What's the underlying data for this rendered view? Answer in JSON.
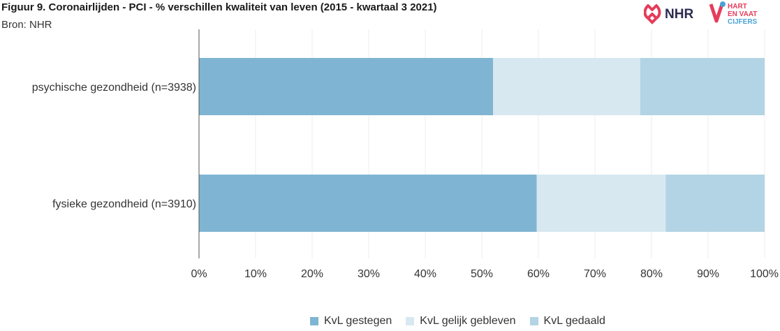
{
  "header": {
    "title": "Figuur 9. Coronairlijden - PCI - % verschillen kwaliteit van leven (2015 - kwartaal 3 2021)",
    "source": "Bron: NHR"
  },
  "logos": {
    "nhr_text": "NHR",
    "hvc_line1": "HART",
    "hvc_line2": "EN VAAT",
    "hvc_line3": "CIJFERS",
    "nhr_color": "#e53c5a",
    "hvc_color": "#e53c5a",
    "hvc_accent": "#4aa3d6"
  },
  "chart_data": {
    "type": "bar",
    "orientation": "horizontal",
    "stacked": true,
    "percent": true,
    "categories": [
      "psychische gezondheid (n=3938)",
      "fysieke gezondheid (n=3910)"
    ],
    "series": [
      {
        "name": "KvL gestegen",
        "values": [
          52,
          59.7
        ],
        "color": "#7fb5d2"
      },
      {
        "name": "KvL gelijk gebleven",
        "values": [
          26,
          22.8
        ],
        "color": "#d7e8f1"
      },
      {
        "name": "KvL gedaald",
        "values": [
          22,
          17.5
        ],
        "color": "#b3d4e4"
      }
    ],
    "x_ticks": [
      "0%",
      "10%",
      "20%",
      "30%",
      "40%",
      "50%",
      "60%",
      "70%",
      "80%",
      "90%",
      "100%"
    ],
    "xlim": [
      0,
      100
    ],
    "grid": true,
    "legend_position": "bottom"
  }
}
